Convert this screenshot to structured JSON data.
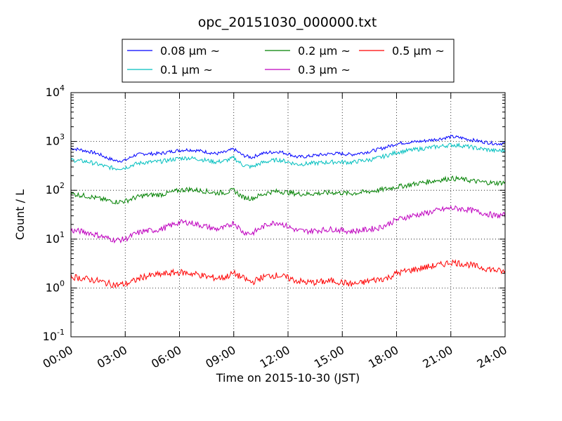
{
  "chart_data": {
    "type": "line",
    "title": "opc_20151030_000000.txt",
    "xlabel": "Time on 2015-10-30 (JST)",
    "ylabel": "Count / L",
    "y_scale": "log",
    "ylim": [
      0.1,
      10000
    ],
    "y_ticks": [
      {
        "value": 0.1,
        "base": "10",
        "exp": "-1"
      },
      {
        "value": 1,
        "base": "10",
        "exp": "0"
      },
      {
        "value": 10,
        "base": "10",
        "exp": "1"
      },
      {
        "value": 100,
        "base": "10",
        "exp": "2"
      },
      {
        "value": 1000,
        "base": "10",
        "exp": "3"
      },
      {
        "value": 10000,
        "base": "10",
        "exp": "4"
      }
    ],
    "xlim": [
      "00:00",
      "24:00"
    ],
    "x_ticks": [
      "00:00",
      "03:00",
      "06:00",
      "09:00",
      "12:00",
      "15:00",
      "18:00",
      "21:00",
      "24:00"
    ],
    "grid": true,
    "legend_position": "top-center",
    "x_hours": [
      0,
      0.5,
      1,
      1.5,
      2,
      2.5,
      3,
      3.5,
      4,
      4.5,
      5,
      5.5,
      6,
      6.5,
      7,
      7.5,
      8,
      8.5,
      9,
      9.5,
      10,
      10.5,
      11,
      11.5,
      12,
      12.5,
      13,
      13.5,
      14,
      14.5,
      15,
      15.5,
      16,
      16.5,
      17,
      17.5,
      18,
      18.5,
      19,
      19.5,
      20,
      20.5,
      21,
      21.5,
      22,
      22.5,
      23,
      23.5,
      24
    ],
    "series": [
      {
        "name": "0.08 µm ~",
        "color": "#0000ff",
        "values": [
          720,
          680,
          620,
          560,
          460,
          400,
          410,
          520,
          560,
          560,
          570,
          620,
          660,
          680,
          650,
          610,
          560,
          600,
          700,
          520,
          470,
          560,
          600,
          620,
          560,
          480,
          490,
          520,
          540,
          570,
          560,
          540,
          580,
          620,
          690,
          780,
          900,
          950,
          980,
          1020,
          1080,
          1150,
          1250,
          1200,
          1100,
          1020,
          960,
          900,
          920
        ]
      },
      {
        "name": "0.1 µm ~",
        "color": "#00bfbf",
        "values": [
          420,
          400,
          380,
          340,
          300,
          280,
          290,
          340,
          370,
          380,
          390,
          420,
          450,
          460,
          440,
          410,
          380,
          400,
          460,
          330,
          300,
          360,
          400,
          420,
          380,
          340,
          350,
          360,
          370,
          380,
          380,
          370,
          400,
          420,
          460,
          520,
          600,
          640,
          680,
          720,
          760,
          800,
          850,
          830,
          780,
          720,
          680,
          640,
          660
        ]
      },
      {
        "name": "0.2 µm ~",
        "color": "#008000",
        "values": [
          85,
          80,
          75,
          68,
          62,
          58,
          60,
          70,
          78,
          80,
          82,
          90,
          100,
          105,
          100,
          95,
          88,
          90,
          100,
          72,
          68,
          80,
          92,
          95,
          90,
          85,
          84,
          86,
          88,
          90,
          88,
          86,
          90,
          95,
          100,
          108,
          118,
          125,
          135,
          145,
          155,
          165,
          175,
          170,
          160,
          150,
          145,
          140,
          145
        ]
      },
      {
        "name": "0.3 µm ~",
        "color": "#bf00bf",
        "values": [
          15,
          14.5,
          13.5,
          12,
          10.5,
          9.5,
          10,
          12.5,
          14.5,
          15,
          16,
          19,
          22,
          22,
          20,
          18,
          16,
          17,
          22,
          14,
          13,
          17,
          21,
          22,
          18,
          15,
          14.5,
          15,
          15.5,
          16,
          15,
          14.5,
          15,
          16,
          17,
          20,
          25,
          28,
          31,
          33,
          37,
          40,
          43,
          42,
          40,
          36,
          33,
          30,
          31
        ]
      },
      {
        "name": "0.5 µm ~",
        "color": "#ff0000",
        "values": [
          1.7,
          1.6,
          1.5,
          1.4,
          1.25,
          1.15,
          1.2,
          1.4,
          1.7,
          1.8,
          1.9,
          2.0,
          2.1,
          2.0,
          1.9,
          1.7,
          1.6,
          1.65,
          2.0,
          1.6,
          1.3,
          1.6,
          1.8,
          1.8,
          1.6,
          1.4,
          1.3,
          1.3,
          1.35,
          1.4,
          1.3,
          1.2,
          1.25,
          1.4,
          1.5,
          1.6,
          2.0,
          2.2,
          2.4,
          2.6,
          2.8,
          3.0,
          3.4,
          3.2,
          3.0,
          2.7,
          2.5,
          2.3,
          2.1
        ]
      }
    ]
  }
}
